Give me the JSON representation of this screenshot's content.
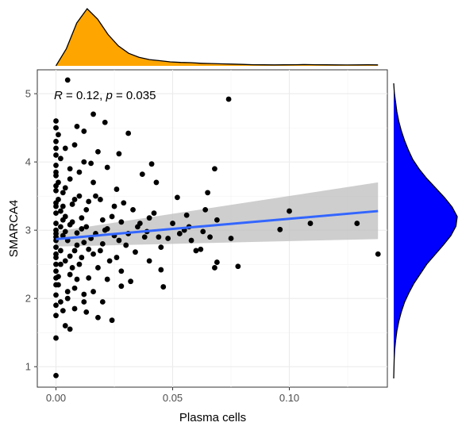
{
  "chart_data": {
    "type": "scatter",
    "xlabel": "Plasma cells",
    "ylabel": "SMARCA4",
    "xlim": [
      -0.008,
      0.142
    ],
    "ylim": [
      0.7,
      5.35
    ],
    "xticks": [
      0.0,
      0.05,
      0.1
    ],
    "xtick_labels": [
      "0.00",
      "0.05",
      "0.10"
    ],
    "yticks": [
      1,
      2,
      3,
      4,
      5
    ],
    "ytick_labels": [
      "1",
      "2",
      "3",
      "4",
      "5"
    ],
    "grid": true,
    "annotation": {
      "r_symbol": "R",
      "r_text": " = 0.12, ",
      "p_symbol": "p",
      "p_text": " = 0.035"
    },
    "regression": {
      "x": [
        0.0,
        0.138
      ],
      "y": [
        2.87,
        3.28
      ],
      "ci_lower_start": 2.76,
      "ci_lower_end": 2.87,
      "ci_upper_start": 2.98,
      "ci_upper_end": 3.7,
      "color": "#3366ff",
      "ci_color": "#bdbdbd"
    },
    "points": [
      [
        0.005,
        5.2
      ],
      [
        0.074,
        4.92
      ],
      [
        0.0,
        4.6
      ],
      [
        0.0,
        4.5
      ],
      [
        0.009,
        4.52
      ],
      [
        0.012,
        4.45
      ],
      [
        0.021,
        4.58
      ],
      [
        0.031,
        4.42
      ],
      [
        0.016,
        4.7
      ],
      [
        0.0,
        4.3
      ],
      [
        0.004,
        4.2
      ],
      [
        0.008,
        4.25
      ],
      [
        0.018,
        4.15
      ],
      [
        0.0,
        4.1
      ],
      [
        0.027,
        4.12
      ],
      [
        0.041,
        3.97
      ],
      [
        0.0,
        3.95
      ],
      [
        0.012,
        4.0
      ],
      [
        0.022,
        3.92
      ],
      [
        0.037,
        3.82
      ],
      [
        0.043,
        3.7
      ],
      [
        0.068,
        3.9
      ],
      [
        0.0,
        3.8
      ],
      [
        0.006,
        3.75
      ],
      [
        0.016,
        3.7
      ],
      [
        0.026,
        3.6
      ],
      [
        0.0,
        3.65
      ],
      [
        0.003,
        3.55
      ],
      [
        0.01,
        3.5
      ],
      [
        0.019,
        3.45
      ],
      [
        0.0,
        3.4
      ],
      [
        0.007,
        3.38
      ],
      [
        0.014,
        3.42
      ],
      [
        0.025,
        3.35
      ],
      [
        0.033,
        3.3
      ],
      [
        0.052,
        3.48
      ],
      [
        0.065,
        3.55
      ],
      [
        0.0,
        3.25
      ],
      [
        0.004,
        3.2
      ],
      [
        0.011,
        3.18
      ],
      [
        0.02,
        3.15
      ],
      [
        0.028,
        3.12
      ],
      [
        0.04,
        3.18
      ],
      [
        0.056,
        3.22
      ],
      [
        0.064,
        3.3
      ],
      [
        0.069,
        3.15
      ],
      [
        0.0,
        3.1
      ],
      [
        0.006,
        3.08
      ],
      [
        0.013,
        3.05
      ],
      [
        0.022,
        3.02
      ],
      [
        0.035,
        3.05
      ],
      [
        0.05,
        3.1
      ],
      [
        0.057,
        3.05
      ],
      [
        0.063,
        2.98
      ],
      [
        0.1,
        3.28
      ],
      [
        0.109,
        3.1
      ],
      [
        0.129,
        3.1
      ],
      [
        0.0,
        3.0
      ],
      [
        0.004,
        2.98
      ],
      [
        0.009,
        2.96
      ],
      [
        0.017,
        2.95
      ],
      [
        0.025,
        2.92
      ],
      [
        0.038,
        2.9
      ],
      [
        0.048,
        2.88
      ],
      [
        0.058,
        2.85
      ],
      [
        0.066,
        2.9
      ],
      [
        0.075,
        2.88
      ],
      [
        0.096,
        3.01
      ],
      [
        0.0,
        2.9
      ],
      [
        0.005,
        2.85
      ],
      [
        0.012,
        2.82
      ],
      [
        0.02,
        2.8
      ],
      [
        0.03,
        2.78
      ],
      [
        0.045,
        2.75
      ],
      [
        0.06,
        2.7
      ],
      [
        0.062,
        2.72
      ],
      [
        0.0,
        2.75
      ],
      [
        0.008,
        2.7
      ],
      [
        0.016,
        2.65
      ],
      [
        0.026,
        2.6
      ],
      [
        0.04,
        2.55
      ],
      [
        0.069,
        2.53
      ],
      [
        0.078,
        2.47
      ],
      [
        0.068,
        2.45
      ],
      [
        0.138,
        2.65
      ],
      [
        0.0,
        2.6
      ],
      [
        0.004,
        2.55
      ],
      [
        0.01,
        2.5
      ],
      [
        0.018,
        2.45
      ],
      [
        0.028,
        2.4
      ],
      [
        0.045,
        2.42
      ],
      [
        0.0,
        2.4
      ],
      [
        0.006,
        2.35
      ],
      [
        0.014,
        2.3
      ],
      [
        0.022,
        2.28
      ],
      [
        0.032,
        2.25
      ],
      [
        0.046,
        2.17
      ],
      [
        0.0,
        2.2
      ],
      [
        0.008,
        2.15
      ],
      [
        0.016,
        2.1
      ],
      [
        0.028,
        2.18
      ],
      [
        0.0,
        2.05
      ],
      [
        0.005,
        2.0
      ],
      [
        0.012,
        1.95
      ],
      [
        0.02,
        1.95
      ],
      [
        0.0,
        1.9
      ],
      [
        0.008,
        1.85
      ],
      [
        0.0,
        1.75
      ],
      [
        0.013,
        1.8
      ],
      [
        0.018,
        1.72
      ],
      [
        0.024,
        1.68
      ],
      [
        0.004,
        1.6
      ],
      [
        0.006,
        1.55
      ],
      [
        0.0,
        1.42
      ],
      [
        0.0,
        0.87
      ],
      [
        0.002,
        3.05
      ],
      [
        0.003,
        2.92
      ],
      [
        0.007,
        3.12
      ],
      [
        0.009,
        2.78
      ],
      [
        0.011,
        2.6
      ],
      [
        0.013,
        3.3
      ],
      [
        0.015,
        2.88
      ],
      [
        0.017,
        3.5
      ],
      [
        0.019,
        2.7
      ],
      [
        0.021,
        3.0
      ],
      [
        0.023,
        2.55
      ],
      [
        0.024,
        3.2
      ],
      [
        0.027,
        2.85
      ],
      [
        0.029,
        3.4
      ],
      [
        0.031,
        2.95
      ],
      [
        0.034,
        2.68
      ],
      [
        0.036,
        3.1
      ],
      [
        0.039,
        2.98
      ],
      [
        0.042,
        3.25
      ],
      [
        0.044,
        2.9
      ],
      [
        0.053,
        2.95
      ],
      [
        0.055,
        3.0
      ],
      [
        0.001,
        3.7
      ],
      [
        0.003,
        3.35
      ],
      [
        0.002,
        2.7
      ],
      [
        0.001,
        2.2
      ],
      [
        0.002,
        1.95
      ],
      [
        0.007,
        2.45
      ],
      [
        0.01,
        3.85
      ],
      [
        0.015,
        3.98
      ],
      [
        0.002,
        4.05
      ],
      [
        0.001,
        4.4
      ],
      [
        0.006,
        3.9
      ],
      [
        0.004,
        3.62
      ],
      [
        0.0,
        3.58
      ],
      [
        0.003,
        3.15
      ],
      [
        0.002,
        2.5
      ],
      [
        0.001,
        2.32
      ],
      [
        0.003,
        1.82
      ],
      [
        0.005,
        2.1
      ],
      [
        0.008,
        3.45
      ],
      [
        0.011,
        3.02
      ],
      [
        0.014,
        2.72
      ],
      [
        0.006,
        2.62
      ],
      [
        0.009,
        2.28
      ],
      [
        0.012,
        2.06
      ],
      [
        0.001,
        3.45
      ],
      [
        0.002,
        3.28
      ],
      [
        0.0,
        3.35
      ],
      [
        0.0,
        2.95
      ],
      [
        0.0,
        2.85
      ],
      [
        0.0,
        2.65
      ],
      [
        0.0,
        2.5
      ],
      [
        0.0,
        2.3
      ],
      [
        0.0,
        3.85
      ],
      [
        0.0,
        4.2
      ]
    ],
    "marginal_x": {
      "color": "#ffa500",
      "density": [
        0.0,
        0.3,
        0.75,
        1.0,
        0.82,
        0.55,
        0.35,
        0.22,
        0.15,
        0.11,
        0.09,
        0.07,
        0.06,
        0.055,
        0.045,
        0.04,
        0.035,
        0.03,
        0.025,
        0.02,
        0.018,
        0.017,
        0.018,
        0.02,
        0.022,
        0.02,
        0.018,
        0.016,
        0.015,
        0.016,
        0.018,
        0.016
      ]
    },
    "marginal_y": {
      "color": "#0000ff",
      "density": [
        0.0,
        0.01,
        0.03,
        0.05,
        0.08,
        0.12,
        0.17,
        0.23,
        0.3,
        0.4,
        0.52,
        0.66,
        0.8,
        0.92,
        1.0,
        0.98,
        0.9,
        0.78,
        0.65,
        0.52,
        0.42,
        0.32,
        0.24,
        0.17,
        0.12,
        0.08,
        0.05,
        0.03,
        0.015,
        0.008,
        0.004,
        0.0
      ]
    }
  }
}
